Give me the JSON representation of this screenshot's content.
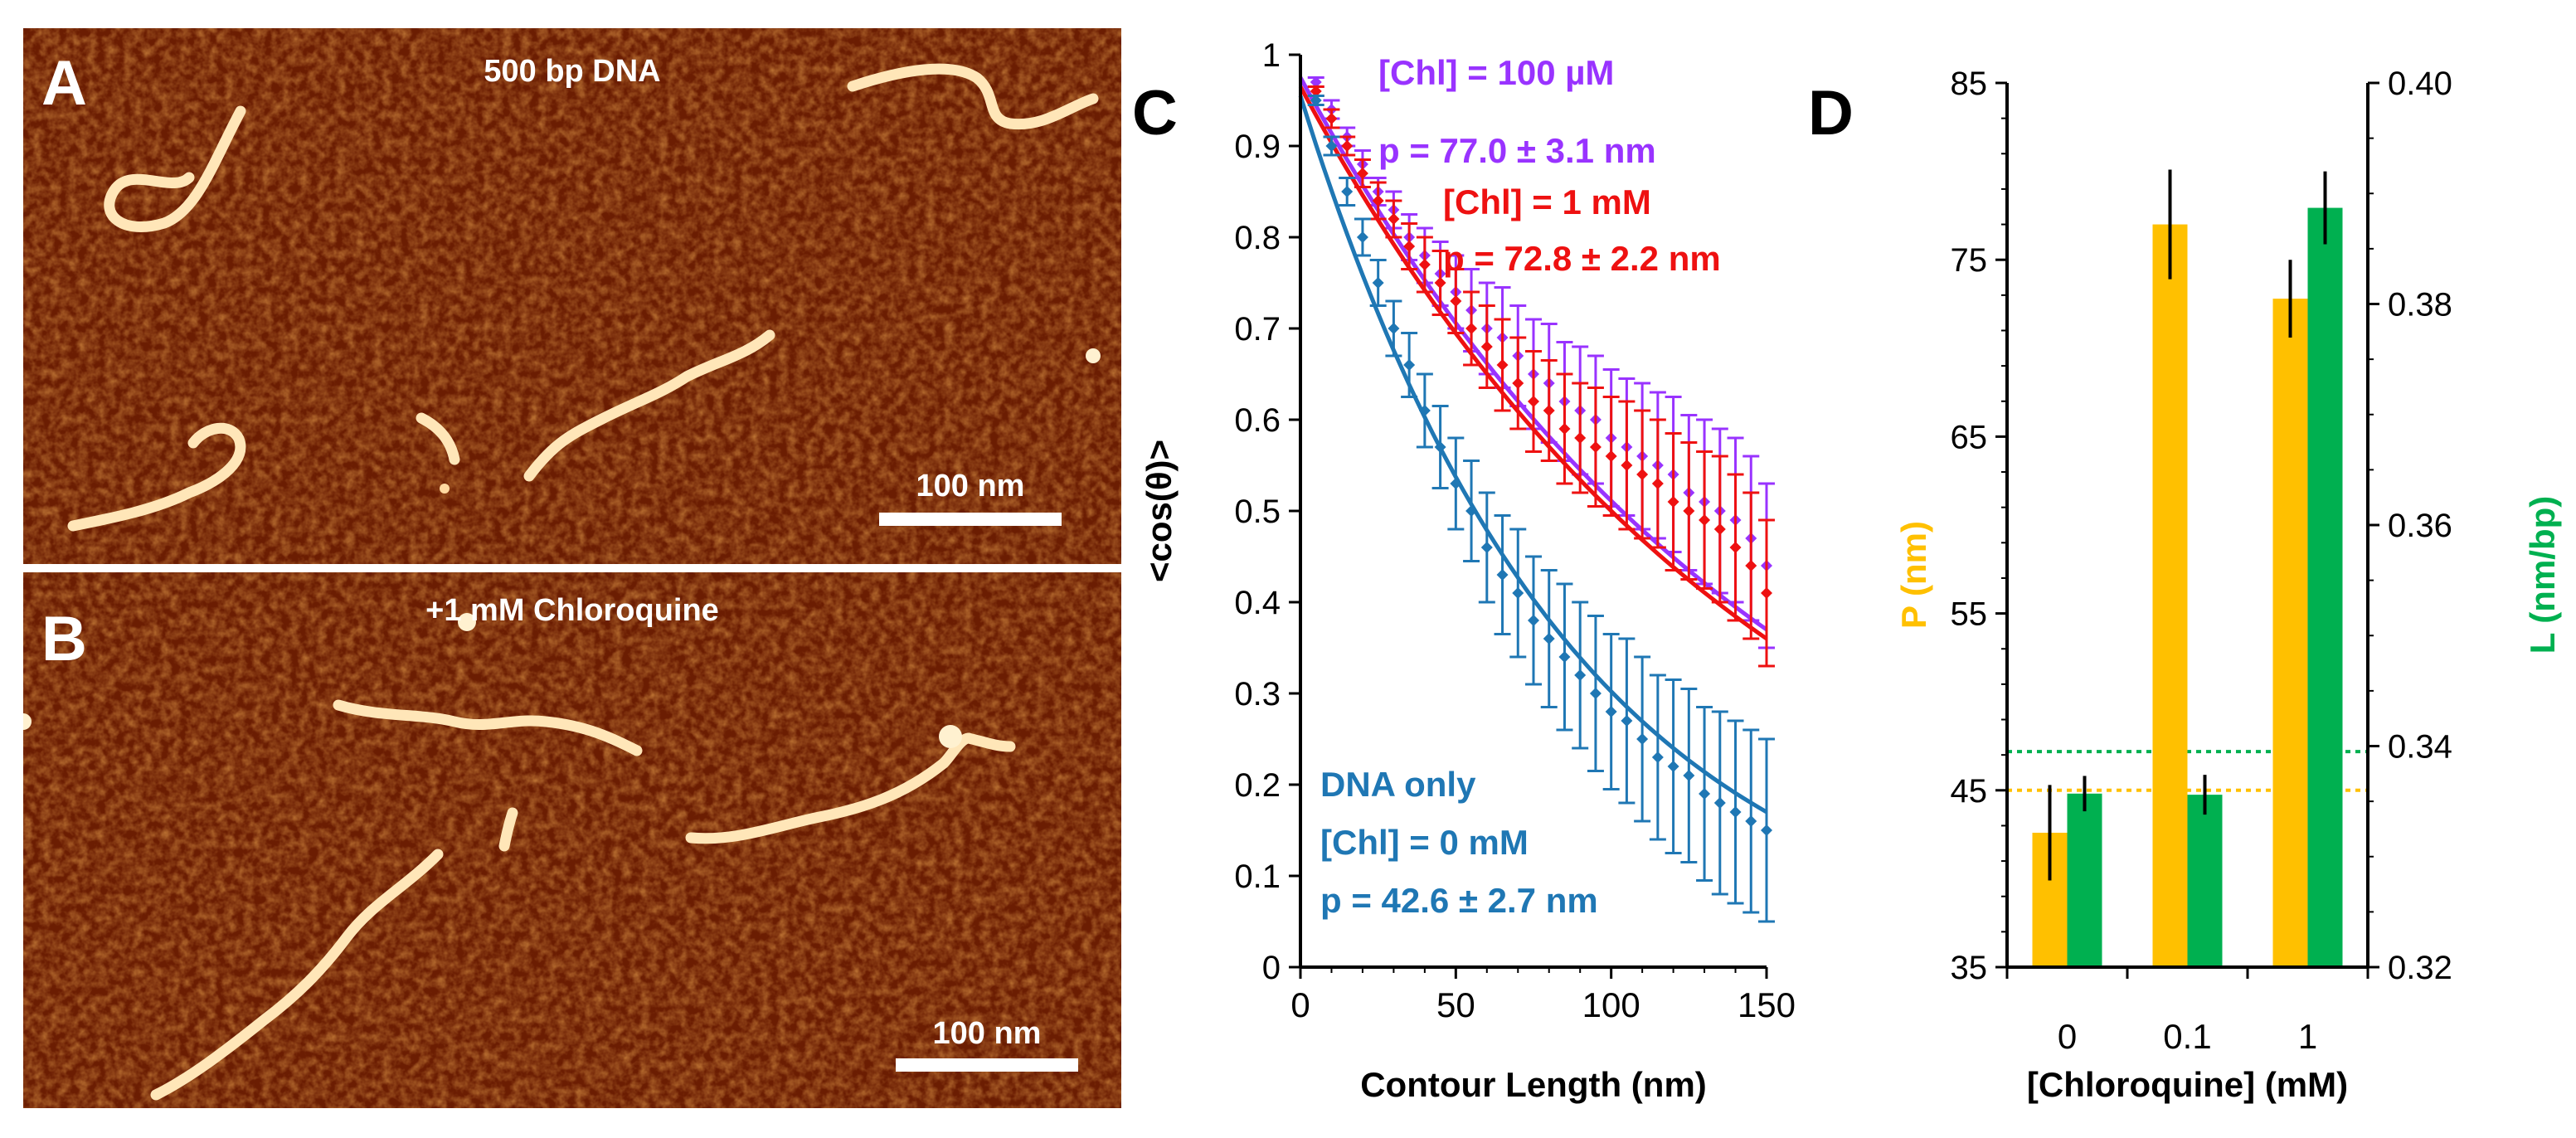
{
  "colors": {
    "purple": "#9933ff",
    "red": "#ee1111",
    "blue": "#1f77b4",
    "gold": "#ffc000",
    "green": "#00b050",
    "afm_bg": "#6b1d02",
    "white": "#ffffff"
  },
  "panels": {
    "a": {
      "letter": "A",
      "caption": "500 bp DNA",
      "scale_label": "100 nm"
    },
    "b": {
      "letter": "B",
      "caption": "+1 mM Chloroquine",
      "scale_label": "100 nm"
    },
    "c": {
      "letter": "C"
    },
    "d": {
      "letter": "D"
    }
  },
  "chart_data": [
    {
      "type": "scatter",
      "panel": "C",
      "xlabel": "Contour Length (nm)",
      "ylabel": "<cos(θ)>",
      "xlim": [
        0,
        150
      ],
      "ylim": [
        0,
        1
      ],
      "x_ticks": [
        0,
        50,
        100,
        150
      ],
      "y_ticks": [
        0,
        0.1,
        0.2,
        0.3,
        0.4,
        0.5,
        0.6,
        0.7,
        0.8,
        0.9,
        1
      ],
      "x_tick_labels": [
        "0",
        "50",
        "100",
        "150"
      ],
      "y_tick_labels": [
        "0",
        "0.1",
        "0.2",
        "0.3",
        "0.4",
        "0.5",
        "0.6",
        "0.7",
        "0.8",
        "0.9",
        "1"
      ],
      "x": [
        5,
        10,
        15,
        20,
        25,
        30,
        35,
        40,
        45,
        50,
        55,
        60,
        65,
        70,
        75,
        80,
        85,
        90,
        95,
        100,
        105,
        110,
        115,
        120,
        125,
        130,
        135,
        140,
        145,
        150
      ],
      "series": [
        {
          "name": "[Chl] = 100 µM",
          "color_key": "purple",
          "persistence_nm": 77.0,
          "fit_end": 0.37,
          "values": [
            0.97,
            0.94,
            0.91,
            0.88,
            0.85,
            0.83,
            0.8,
            0.78,
            0.76,
            0.74,
            0.72,
            0.7,
            0.69,
            0.67,
            0.65,
            0.64,
            0.62,
            0.61,
            0.6,
            0.58,
            0.57,
            0.56,
            0.55,
            0.54,
            0.52,
            0.51,
            0.5,
            0.49,
            0.47,
            0.44
          ],
          "error": [
            0.005,
            0.01,
            0.01,
            0.015,
            0.015,
            0.02,
            0.025,
            0.03,
            0.035,
            0.04,
            0.045,
            0.05,
            0.055,
            0.055,
            0.06,
            0.065,
            0.065,
            0.07,
            0.07,
            0.075,
            0.075,
            0.08,
            0.08,
            0.085,
            0.085,
            0.09,
            0.09,
            0.09,
            0.09,
            0.09
          ]
        },
        {
          "name": "[Chl] = 1 mM",
          "color_key": "red",
          "persistence_nm": 72.8,
          "fit_end": 0.36,
          "values": [
            0.96,
            0.93,
            0.9,
            0.87,
            0.84,
            0.82,
            0.79,
            0.77,
            0.75,
            0.73,
            0.7,
            0.68,
            0.66,
            0.64,
            0.62,
            0.61,
            0.59,
            0.58,
            0.57,
            0.56,
            0.55,
            0.54,
            0.53,
            0.51,
            0.5,
            0.49,
            0.48,
            0.46,
            0.44,
            0.41
          ],
          "error": [
            0.005,
            0.01,
            0.01,
            0.015,
            0.02,
            0.02,
            0.025,
            0.03,
            0.035,
            0.035,
            0.04,
            0.045,
            0.05,
            0.05,
            0.055,
            0.055,
            0.06,
            0.06,
            0.065,
            0.065,
            0.07,
            0.07,
            0.07,
            0.075,
            0.075,
            0.075,
            0.08,
            0.08,
            0.08,
            0.08
          ]
        },
        {
          "name": "[Chl] = 0 mM",
          "color_key": "blue",
          "persistence_nm": 42.6,
          "fit_end": 0.17,
          "values": [
            0.95,
            0.9,
            0.85,
            0.8,
            0.75,
            0.7,
            0.66,
            0.61,
            0.57,
            0.53,
            0.5,
            0.46,
            0.43,
            0.41,
            0.38,
            0.36,
            0.34,
            0.32,
            0.3,
            0.28,
            0.27,
            0.25,
            0.23,
            0.22,
            0.21,
            0.19,
            0.18,
            0.17,
            0.16,
            0.15
          ],
          "error": [
            0.005,
            0.01,
            0.015,
            0.02,
            0.025,
            0.03,
            0.035,
            0.04,
            0.045,
            0.05,
            0.055,
            0.06,
            0.065,
            0.07,
            0.07,
            0.075,
            0.08,
            0.08,
            0.085,
            0.085,
            0.09,
            0.09,
            0.09,
            0.095,
            0.095,
            0.095,
            0.1,
            0.1,
            0.1,
            0.1
          ]
        }
      ],
      "annotations": [
        {
          "text": "[Chl] = 100 µM",
          "color_key": "purple"
        },
        {
          "text": "p = 77.0 ± 3.1 nm",
          "color_key": "purple"
        },
        {
          "text": "[Chl] = 1 mM",
          "color_key": "red"
        },
        {
          "text": "p = 72.8 ± 2.2 nm",
          "color_key": "red"
        },
        {
          "text": "DNA only",
          "color_key": "blue"
        },
        {
          "text": "[Chl] = 0 mM",
          "color_key": "blue"
        },
        {
          "text": "p = 42.6 ± 2.7 nm",
          "color_key": "blue"
        }
      ]
    },
    {
      "type": "bar",
      "panel": "D",
      "xlabel": "[Chloroquine]  (mM)",
      "ylabel_left": "P (nm)",
      "ylabel_right": "L (nm/bp)",
      "categories": [
        "0",
        "0.1",
        "1"
      ],
      "ylim_left": [
        35,
        85
      ],
      "ylim_right": [
        0.32,
        0.4
      ],
      "y_ticks_left": [
        35,
        45,
        55,
        65,
        75,
        85
      ],
      "y_ticks_right": [
        0.32,
        0.34,
        0.36,
        0.38,
        0.4
      ],
      "y_tick_labels_left": [
        "35",
        "45",
        "55",
        "65",
        "75",
        "85"
      ],
      "y_tick_labels_right": [
        "0.32",
        "0.34",
        "0.36",
        "0.38",
        "0.40"
      ],
      "series": [
        {
          "name": "P (nm)",
          "axis": "left",
          "color_key": "gold",
          "values": [
            42.6,
            77.0,
            72.8
          ],
          "error": [
            2.7,
            3.1,
            2.2
          ]
        },
        {
          "name": "L (nm/bp)",
          "axis": "right",
          "color_key": "green",
          "values": [
            0.3357,
            0.3356,
            0.3887
          ],
          "error": [
            0.0016,
            0.0018,
            0.0033
          ]
        }
      ],
      "reference_lines": [
        {
          "axis": "left",
          "value": 45,
          "color_key": "gold"
        },
        {
          "axis": "right",
          "value": 0.3395,
          "color_key": "green"
        }
      ]
    }
  ]
}
